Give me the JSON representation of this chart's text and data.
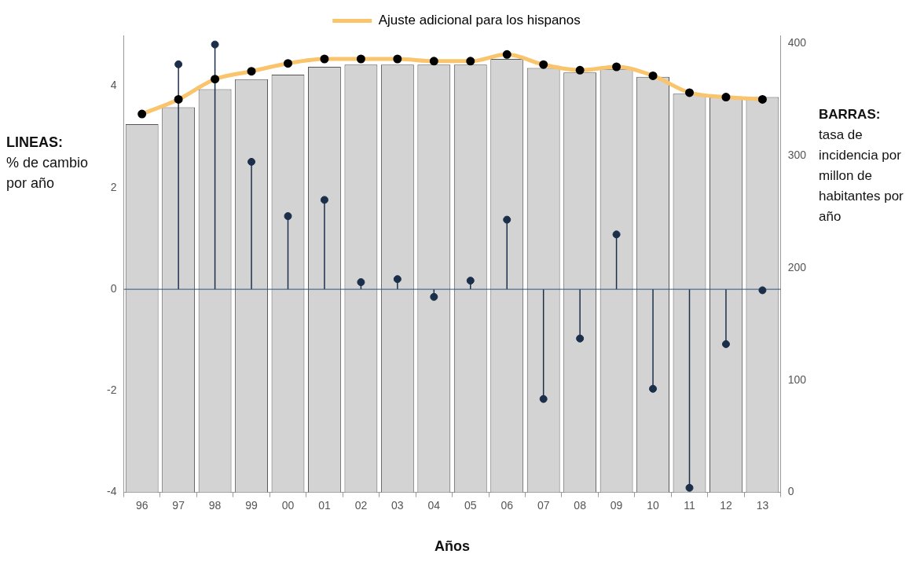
{
  "chart_data": {
    "type": "bar",
    "xlabel": "Años",
    "ylabel": "LINEAS: % de cambio por año",
    "y2label": "BARRAS: tasa de incidencia por millon de habitantes por año",
    "categories": [
      "96",
      "97",
      "98",
      "99",
      "00",
      "01",
      "02",
      "03",
      "04",
      "05",
      "06",
      "07",
      "08",
      "09",
      "10",
      "11",
      "12",
      "13"
    ],
    "ylim": [
      -4,
      5
    ],
    "yticks": [
      -4,
      -2,
      0,
      2,
      4
    ],
    "y2lim": [
      0,
      407
    ],
    "y2ticks": [
      0,
      100,
      200,
      300,
      400
    ],
    "series": [
      {
        "axis": "y2",
        "color": "#d3d3d3",
        "values": [
          328,
          343,
          359,
          368,
          372,
          379,
          381,
          381,
          381,
          381,
          386,
          378,
          374,
          377,
          370,
          355,
          352,
          352
        ]
      },
      {
        "type": "lollipop",
        "axis": "y",
        "color": "#1c2f4a",
        "values": [
          null,
          4.43,
          4.82,
          2.51,
          1.44,
          1.76,
          0.14,
          0.2,
          -0.15,
          0.17,
          1.37,
          -2.16,
          -0.97,
          1.08,
          -1.96,
          -3.91,
          -1.08,
          -0.02
        ]
      },
      {
        "type": "line",
        "axis": "y2",
        "name": "Ajuste adicional para los hispanos",
        "color": "#f9c46b",
        "values": [
          337,
          350,
          368,
          375,
          382,
          386,
          386,
          386,
          384,
          384,
          390,
          381,
          376,
          379,
          371,
          356,
          352,
          350
        ]
      }
    ],
    "ref_lines": [
      {
        "axis": "y",
        "value": 0,
        "color": "#2f5480"
      }
    ],
    "legend": "top",
    "marker": "circle",
    "grid": false
  }
}
